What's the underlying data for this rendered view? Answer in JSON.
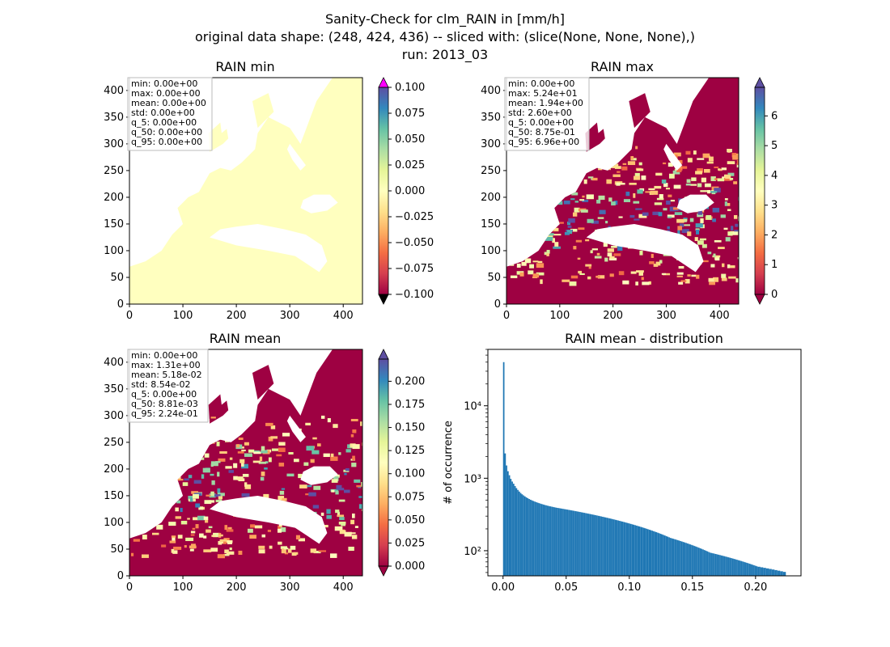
{
  "figure": {
    "title_lines": [
      "Sanity-Check for clm_RAIN in [mm/h]",
      "original data shape: (248, 424, 436) -- sliced with: (slice(None, None, None),)",
      "run: 2013_03"
    ]
  },
  "colors": {
    "cmap": [
      "#9e0142",
      "#d53e4f",
      "#f46d43",
      "#fdae61",
      "#fee08b",
      "#ffffbf",
      "#e6f598",
      "#abdda4",
      "#66c2a5",
      "#3288bd",
      "#5e4fa2"
    ],
    "over_min_panel": "#ff00ff",
    "under_min_panel": "#000000",
    "hist_bar": "#1f77b4",
    "spine": "#000000"
  },
  "chart_data": [
    {
      "type": "heatmap",
      "title": "RAIN min",
      "x_ticks": [
        "0",
        "100",
        "200",
        "300",
        "400"
      ],
      "y_ticks": [
        "0",
        "50",
        "100",
        "150",
        "200",
        "250",
        "300",
        "350",
        "400"
      ],
      "xlim": [
        0,
        436
      ],
      "ylim": [
        0,
        424
      ],
      "field": "constant zero over land and sea-masked Europe domain",
      "stats": [
        "min: 0.00e+00",
        "max: 0.00e+00",
        "mean: 0.00e+00",
        "std: 0.00e+00",
        "q_5: 0.00e+00",
        "q_50: 0.00e+00",
        "q_95: 0.00e+00"
      ],
      "colorbar": {
        "range": [
          -0.1,
          0.1
        ],
        "extend": "both",
        "ticks": [
          "0.100",
          "0.075",
          "0.050",
          "0.025",
          "0.000",
          "−0.025",
          "−0.050",
          "−0.075",
          "−0.100"
        ],
        "tick_values": [
          0.1,
          0.075,
          0.05,
          0.025,
          0.0,
          -0.025,
          -0.05,
          -0.075,
          -0.1
        ]
      }
    },
    {
      "type": "heatmap",
      "title": "RAIN max",
      "x_ticks": [
        "0",
        "100",
        "200",
        "300",
        "400"
      ],
      "y_ticks": [
        "0",
        "50",
        "100",
        "150",
        "200",
        "250",
        "300",
        "350",
        "400"
      ],
      "xlim": [
        0,
        436
      ],
      "ylim": [
        0,
        424
      ],
      "stats": [
        "min: 0.00e+00",
        "max: 5.24e+01",
        "mean: 1.94e+00",
        "std: 2.60e+00",
        "q_5: 0.00e+00",
        "q_50: 8.75e-01",
        "q_95: 6.96e+00"
      ],
      "colorbar": {
        "range": [
          0,
          6.96
        ],
        "extend": "both",
        "ticks": [
          "6",
          "5",
          "4",
          "3",
          "2",
          "1",
          "0"
        ],
        "tick_values": [
          6,
          5,
          4,
          3,
          2,
          1,
          0
        ]
      }
    },
    {
      "type": "heatmap",
      "title": "RAIN mean",
      "x_ticks": [
        "0",
        "100",
        "200",
        "300",
        "400"
      ],
      "y_ticks": [
        "0",
        "50",
        "100",
        "150",
        "200",
        "250",
        "300",
        "350",
        "400"
      ],
      "xlim": [
        0,
        436
      ],
      "ylim": [
        0,
        424
      ],
      "stats": [
        "min: 0.00e+00",
        "max: 1.31e+00",
        "mean: 5.18e-02",
        "std: 8.54e-02",
        "q_5: 0.00e+00",
        "q_50: 8.81e-03",
        "q_95: 2.24e-01"
      ],
      "colorbar": {
        "range": [
          0,
          0.224
        ],
        "extend": "both",
        "ticks": [
          "0.200",
          "0.175",
          "0.150",
          "0.125",
          "0.100",
          "0.075",
          "0.050",
          "0.025",
          "0.000"
        ],
        "tick_values": [
          0.2,
          0.175,
          0.15,
          0.125,
          0.1,
          0.075,
          0.05,
          0.025,
          0.0
        ]
      }
    },
    {
      "type": "bar",
      "title": "RAIN mean - distribution",
      "xlabel": "",
      "ylabel": "# of occurrence",
      "yscale": "log",
      "xlim": [
        -0.012,
        0.236
      ],
      "ylim": [
        45,
        60000
      ],
      "x_ticks": [
        "0.00",
        "0.05",
        "0.10",
        "0.15",
        "0.20"
      ],
      "x_tick_values": [
        0.0,
        0.05,
        0.1,
        0.15,
        0.2
      ],
      "y_ticks": [
        "10²",
        "10³",
        "10⁴"
      ],
      "y_tick_values": [
        100,
        1000,
        10000
      ],
      "bin_width": 0.00112,
      "counts": [
        40000,
        2200,
        1500,
        1250,
        1100,
        980,
        900,
        840,
        780,
        730,
        690,
        655,
        625,
        600,
        580,
        562,
        545,
        530,
        517,
        505,
        495,
        485,
        476,
        468,
        460,
        453,
        446,
        440,
        434,
        428,
        423,
        418,
        413,
        409,
        405,
        401,
        397,
        393,
        390,
        387,
        384,
        381,
        378,
        375,
        372,
        369,
        366,
        363,
        360,
        357,
        354,
        351,
        348,
        345,
        342,
        339,
        336,
        333,
        330,
        327,
        324,
        321,
        318,
        315,
        312,
        309,
        306,
        303,
        300,
        297,
        294,
        291,
        288,
        285,
        282,
        279,
        276,
        273,
        270,
        267,
        264,
        261,
        258,
        255,
        252,
        249,
        246,
        243,
        240,
        237,
        234,
        231,
        228,
        225,
        222,
        219,
        216,
        213,
        210,
        207,
        204,
        201,
        198,
        195,
        192,
        189,
        186,
        183,
        180,
        177,
        174,
        171,
        168,
        165,
        162,
        159,
        156,
        153,
        150,
        148,
        146,
        144,
        142,
        140,
        138,
        136,
        134,
        132,
        130,
        128,
        126,
        124,
        122,
        120,
        118,
        116,
        114,
        112,
        110,
        108,
        106,
        104,
        102,
        100,
        98,
        96,
        94,
        93,
        92,
        91,
        90,
        89,
        88,
        87,
        86,
        85,
        84,
        83,
        82,
        81,
        80,
        79,
        78,
        77,
        76,
        75,
        74,
        73,
        72,
        71,
        70,
        69,
        68,
        67,
        66,
        65,
        64,
        63,
        62,
        61,
        60,
        60,
        59,
        59,
        58,
        58,
        57,
        57,
        56,
        56,
        55,
        55,
        54,
        54,
        53,
        53,
        52,
        52,
        51,
        51
      ]
    }
  ]
}
